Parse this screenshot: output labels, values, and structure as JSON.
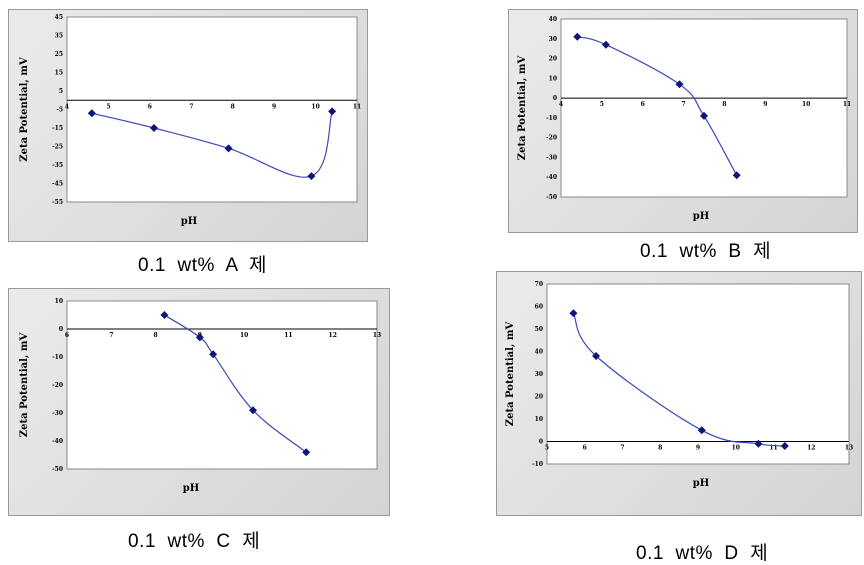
{
  "chart_data": [
    {
      "type": "line",
      "caption": "0.1  wt%  A  제",
      "xlabel": "pH",
      "ylabel": "Zeta Potential, mV",
      "xlim": [
        4,
        11
      ],
      "ylim": [
        -55,
        45
      ],
      "xticks": [
        "4",
        "5",
        "6",
        "7",
        "8",
        "9",
        "10",
        "11"
      ],
      "yticks": [
        "45",
        "35",
        "25",
        "15",
        "5",
        "-5",
        "-15",
        "-25",
        "-35",
        "-45",
        "-55"
      ],
      "x": [
        4.6,
        6.1,
        7.9,
        9.9,
        10.4
      ],
      "y": [
        -7,
        -15,
        -26,
        -41,
        -6
      ]
    },
    {
      "type": "line",
      "caption": "0.1  wt%  B  제",
      "xlabel": "pH",
      "ylabel": "Zeta Potential, mV",
      "xlim": [
        4,
        11
      ],
      "ylim": [
        -50,
        40
      ],
      "xticks": [
        "4",
        "5",
        "6",
        "7",
        "8",
        "9",
        "10",
        "11"
      ],
      "yticks": [
        "40",
        "30",
        "20",
        "10",
        "0",
        "-10",
        "-20",
        "-30",
        "-40",
        "-50"
      ],
      "x": [
        4.4,
        5.1,
        6.9,
        7.5,
        8.3
      ],
      "y": [
        31,
        27,
        7,
        -9,
        -39
      ]
    },
    {
      "type": "line",
      "caption": "0.1  wt%  C  제",
      "xlabel": "pH",
      "ylabel": "Zeta Potential, mV",
      "xlim": [
        6,
        13
      ],
      "ylim": [
        -50,
        10
      ],
      "xticks": [
        "6",
        "7",
        "8",
        "9",
        "10",
        "11",
        "12",
        "13"
      ],
      "yticks": [
        "10",
        "0",
        "-10",
        "-20",
        "-30",
        "-40",
        "-50"
      ],
      "x": [
        8.2,
        9.0,
        9.3,
        10.2,
        11.4
      ],
      "y": [
        5,
        -3,
        -9,
        -29,
        -44
      ]
    },
    {
      "type": "line",
      "caption": "0.1  wt%  D  제",
      "xlabel": "pH",
      "ylabel": "Zeta Potential, mV",
      "xlim": [
        5,
        13
      ],
      "ylim": [
        -10,
        70
      ],
      "xticks": [
        "5",
        "6",
        "7",
        "8",
        "9",
        "10",
        "11",
        "12",
        "13"
      ],
      "yticks": [
        "70",
        "60",
        "50",
        "40",
        "30",
        "20",
        "10",
        "0",
        "-10"
      ],
      "x": [
        5.7,
        6.3,
        9.1,
        10.6,
        11.3
      ],
      "y": [
        57,
        38,
        5,
        -1,
        -2
      ]
    }
  ]
}
